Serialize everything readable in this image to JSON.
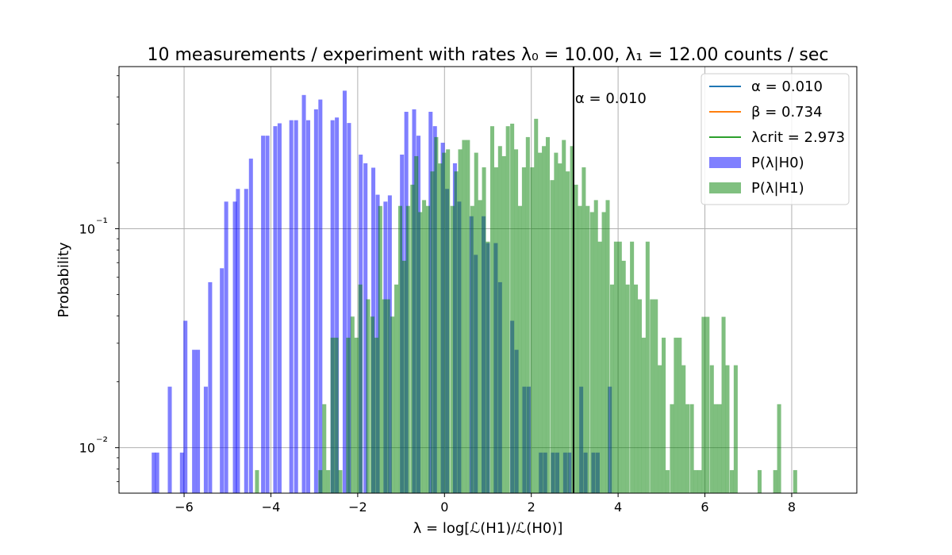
{
  "chart_data": {
    "type": "bar",
    "title": "10 measurements / experiment with rates λ₀ = 10.00, λ₁ = 12.00 counts / sec",
    "xlabel": "λ = log[ℒ(H1)/ℒ(H0)]",
    "ylabel": "Probability",
    "xlim": [
      -7.5,
      9.5
    ],
    "ylim": [
      0.0062,
      0.55
    ],
    "yscale": "log",
    "grid": true,
    "legend_position": "top-right",
    "x_ticks": [
      -6,
      -4,
      -2,
      0,
      2,
      4,
      6,
      8
    ],
    "x_tick_labels": [
      "−6",
      "−4",
      "−2",
      "0",
      "2",
      "4",
      "6",
      "8"
    ],
    "y_ticks": [
      0.01,
      0.1
    ],
    "y_tick_labels": [
      "10⁻²",
      "10⁻¹"
    ],
    "bar_width": 0.092,
    "critical_line": {
      "x": 2.973,
      "label": "α = 0.010",
      "color": "#000000"
    },
    "legend": [
      {
        "label": "α = 0.010",
        "kind": "line",
        "color": "#1f77b4"
      },
      {
        "label": "β = 0.734",
        "kind": "line",
        "color": "#ff7f0e"
      },
      {
        "label": "λcrit = 2.973",
        "kind": "line",
        "color": "#2ca02c"
      },
      {
        "label": "P(λ|H0)",
        "kind": "patch",
        "color": "#8080ff"
      },
      {
        "label": "P(λ|H1)",
        "kind": "patch",
        "color": "#80c080"
      }
    ],
    "series": [
      {
        "name": "P(λ|H0)",
        "color": "#0000ff",
        "opacity": 0.5,
        "x": [
          -6.7,
          -6.62,
          -6.33,
          -6.05,
          -5.97,
          -5.77,
          -5.68,
          -5.5,
          -5.4,
          -5.13,
          -5.03,
          -4.83,
          -4.76,
          -4.57,
          -4.46,
          -4.18,
          -4.08,
          -3.9,
          -3.8,
          -3.53,
          -3.42,
          -3.24,
          -3.14,
          -2.96,
          -2.86,
          -2.58,
          -2.48,
          -2.3,
          -2.2,
          -1.93,
          -1.82,
          -1.64,
          -1.54,
          -1.36,
          -1.26,
          -0.98,
          -0.88,
          -0.7,
          -0.6,
          -0.32,
          -0.22,
          -0.04,
          0.06,
          0.24,
          0.34,
          0.62,
          0.72,
          0.9,
          1.0,
          1.18,
          1.28,
          1.56,
          1.66,
          1.84,
          1.94,
          2.22,
          2.32,
          2.5,
          2.6,
          2.78,
          2.88,
          3.15,
          3.25,
          3.43,
          3.53,
          3.81
        ],
        "values": [
          0.0095,
          0.0095,
          0.019,
          0.0095,
          0.038,
          0.028,
          0.028,
          0.019,
          0.057,
          0.066,
          0.133,
          0.133,
          0.152,
          0.152,
          0.209,
          0.266,
          0.266,
          0.294,
          0.303,
          0.313,
          0.313,
          0.408,
          0.313,
          0.351,
          0.389,
          0.313,
          0.322,
          0.427,
          0.304,
          0.218,
          0.199,
          0.19,
          0.143,
          0.133,
          0.142,
          0.218,
          0.342,
          0.351,
          0.266,
          0.342,
          0.294,
          0.247,
          0.152,
          0.199,
          0.133,
          0.114,
          0.076,
          0.114,
          0.086,
          0.086,
          0.057,
          0.038,
          0.028,
          0.019,
          0.019,
          0.0095,
          0.0095,
          0.0095,
          0.0095,
          0.0095,
          0.0095,
          0.019,
          0.0095,
          0.0095,
          0.0095,
          0.019
        ]
      },
      {
        "name": "P(λ|H1)",
        "color": "#008000",
        "opacity": 0.5,
        "x": [
          -4.32,
          -2.86,
          -2.77,
          -2.68,
          -2.58,
          -2.49,
          -2.4,
          -2.22,
          -2.12,
          -2.03,
          -1.94,
          -1.76,
          -1.66,
          -1.57,
          -1.48,
          -1.39,
          -1.3,
          -1.2,
          -1.11,
          -1.02,
          -0.93,
          -0.84,
          -0.74,
          -0.65,
          -0.56,
          -0.47,
          -0.38,
          -0.28,
          -0.19,
          -0.1,
          -0.01,
          0.08,
          0.18,
          0.27,
          0.36,
          0.45,
          0.54,
          0.64,
          0.73,
          0.82,
          0.91,
          1.0,
          1.1,
          1.19,
          1.28,
          1.37,
          1.46,
          1.56,
          1.65,
          1.74,
          1.83,
          1.92,
          2.02,
          2.11,
          2.2,
          2.29,
          2.38,
          2.48,
          2.57,
          2.66,
          2.75,
          2.84,
          2.94,
          3.03,
          3.12,
          3.21,
          3.3,
          3.4,
          3.49,
          3.58,
          3.67,
          3.76,
          3.86,
          3.95,
          4.04,
          4.13,
          4.22,
          4.32,
          4.41,
          4.5,
          4.59,
          4.68,
          4.78,
          4.87,
          4.96,
          5.05,
          5.14,
          5.24,
          5.33,
          5.42,
          5.51,
          5.6,
          5.7,
          5.79,
          5.88,
          5.97,
          6.06,
          6.16,
          6.25,
          6.34,
          6.43,
          6.52,
          6.62,
          6.71,
          7.26,
          7.62,
          7.71,
          8.08
        ],
        "values": [
          0.0079,
          0.0079,
          0.0158,
          0.0079,
          0.0318,
          0.0318,
          0.0079,
          0.0318,
          0.0397,
          0.0318,
          0.0556,
          0.0476,
          0.0397,
          0.0318,
          0.127,
          0.0476,
          0.0476,
          0.0397,
          0.0556,
          0.1271,
          0.0714,
          0.1271,
          0.1589,
          0.2145,
          0.1191,
          0.1351,
          0.1271,
          0.1827,
          0.2621,
          0.1987,
          0.2224,
          0.2304,
          0.1271,
          0.1827,
          0.2304,
          0.2542,
          0.2542,
          0.1271,
          0.2224,
          0.1351,
          0.1907,
          0.0873,
          0.2939,
          0.1907,
          0.2384,
          0.2145,
          0.2939,
          0.3018,
          0.2304,
          0.1271,
          0.1907,
          0.2621,
          0.1907,
          0.3177,
          0.2224,
          0.2384,
          0.2621,
          0.1667,
          0.2224,
          0.1987,
          0.2542,
          0.1827,
          0.2384,
          0.1589,
          0.1271,
          0.1907,
          0.1271,
          0.1191,
          0.1351,
          0.0873,
          0.1191,
          0.1351,
          0.0556,
          0.0873,
          0.0873,
          0.0714,
          0.0556,
          0.0873,
          0.0556,
          0.0476,
          0.0318,
          0.0873,
          0.0476,
          0.0476,
          0.0238,
          0.0318,
          0.0079,
          0.0158,
          0.0318,
          0.0318,
          0.0238,
          0.0158,
          0.0158,
          0.0079,
          0.0079,
          0.0396,
          0.0396,
          0.0238,
          0.0158,
          0.0158,
          0.0396,
          0.0238,
          0.0079,
          0.0238,
          0.0079,
          0.0079,
          0.0158,
          0.0079
        ]
      }
    ]
  }
}
